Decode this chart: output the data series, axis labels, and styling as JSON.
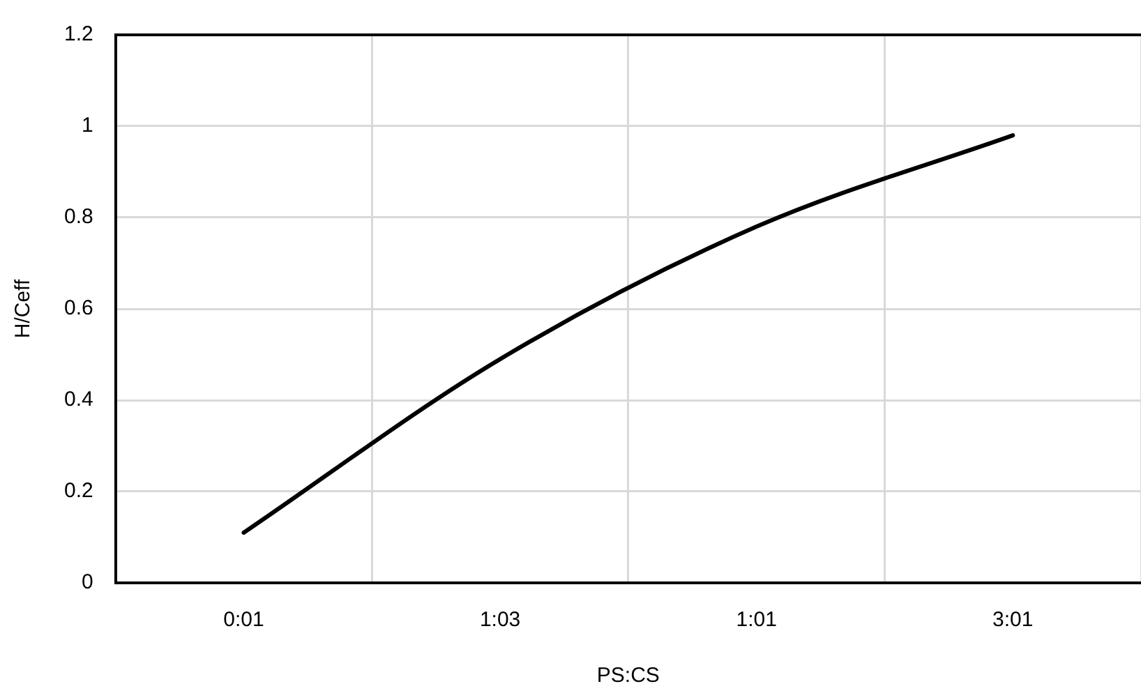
{
  "chart_data": {
    "type": "line",
    "xlabel": "PS:CS",
    "ylabel": "H/Ceff",
    "categories": [
      "0:01",
      "1:03",
      "1:01",
      "3:01"
    ],
    "series": [
      {
        "color": "#000000",
        "values": [
          0.11,
          0.49,
          0.78,
          0.98
        ]
      }
    ],
    "ylim": [
      0,
      1.2
    ],
    "yticks": [
      0,
      0.2,
      0.4,
      0.6,
      0.8,
      1,
      1.2
    ],
    "grid": true,
    "legend": false,
    "marker": "none",
    "line_style": "solid"
  }
}
